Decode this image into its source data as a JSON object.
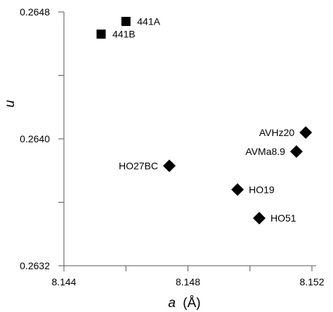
{
  "chart_data": {
    "type": "scatter",
    "title": "",
    "xlabel_var": "a",
    "xlabel_unit": "(Å)",
    "ylabel": "u",
    "xlim": [
      8.144,
      8.152
    ],
    "ylim": [
      0.2632,
      0.2648
    ],
    "x_ticks": [
      8.144,
      8.146,
      8.148,
      8.15,
      8.152
    ],
    "x_tick_labels": [
      "8.144",
      "",
      "8.148",
      "",
      "8.152"
    ],
    "y_ticks": [
      0.2632,
      0.2636,
      0.264,
      0.2644,
      0.2648
    ],
    "y_tick_labels": [
      "0.2632",
      "",
      "0.2640",
      "",
      "0.2648"
    ],
    "grid": false,
    "legend": "none",
    "marker_color": "#000000",
    "points": [
      {
        "label": "441A",
        "x": 8.146,
        "y": 0.26474,
        "marker": "square",
        "label_side": "right"
      },
      {
        "label": "441B",
        "x": 8.1452,
        "y": 0.26466,
        "marker": "square",
        "label_side": "right"
      },
      {
        "label": "HO27BC",
        "x": 8.1474,
        "y": 0.26383,
        "marker": "diamond",
        "label_side": "left"
      },
      {
        "label": "HO19",
        "x": 8.1496,
        "y": 0.26368,
        "marker": "diamond",
        "label_side": "right"
      },
      {
        "label": "HO51",
        "x": 8.1503,
        "y": 0.2635,
        "marker": "diamond",
        "label_side": "right"
      },
      {
        "label": "AVHz20",
        "x": 8.1518,
        "y": 0.26404,
        "marker": "diamond",
        "label_side": "left"
      },
      {
        "label": "AVMa8.9",
        "x": 8.1515,
        "y": 0.26392,
        "marker": "diamond",
        "label_side": "left"
      }
    ]
  }
}
